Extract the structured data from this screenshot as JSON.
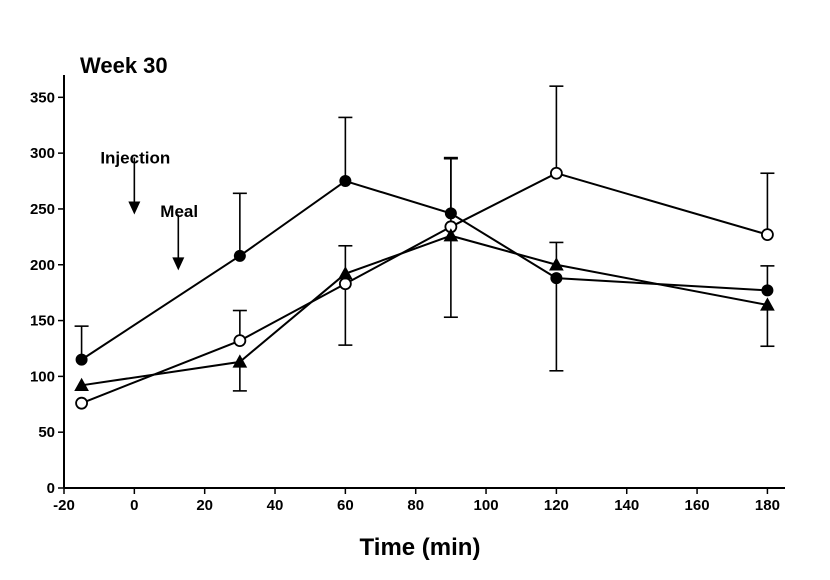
{
  "chart_data": {
    "type": "line",
    "title": "Week 30",
    "xlabel": "Time (min)",
    "ylabel": "",
    "xlim": [
      -20,
      185
    ],
    "ylim": [
      0,
      370
    ],
    "xticks": [
      -20,
      0,
      20,
      40,
      60,
      80,
      100,
      120,
      140,
      160,
      180
    ],
    "yticks": [
      0,
      50,
      100,
      150,
      200,
      250,
      300,
      350
    ],
    "grid": false,
    "x": [
      -15,
      30,
      60,
      90,
      120,
      180
    ],
    "series": [
      {
        "marker": "filled-circle",
        "values": [
          115,
          208,
          275,
          246,
          188,
          177
        ],
        "error_up": [
          30,
          56,
          57,
          49,
          0,
          22
        ],
        "error_down": [
          0,
          0,
          0,
          0,
          83,
          0
        ]
      },
      {
        "marker": "open-circle",
        "values": [
          76,
          132,
          183,
          234,
          282,
          227
        ],
        "error_up": [
          0,
          27,
          0,
          62,
          78,
          55
        ],
        "error_down": [
          0,
          0,
          55,
          81,
          0,
          0
        ]
      },
      {
        "marker": "filled-triangle",
        "values": [
          92,
          113,
          192,
          226,
          200,
          164
        ],
        "error_up": [
          0,
          0,
          25,
          0,
          20,
          0
        ],
        "error_down": [
          0,
          26,
          0,
          0,
          0,
          37
        ]
      }
    ],
    "annotations": [
      {
        "text": "Injection",
        "x": 0,
        "arrow_from_y": 296,
        "arrow_to_y": 245
      },
      {
        "text": "Meal",
        "x": 12.5,
        "arrow_from_y": 245,
        "arrow_to_y": 195
      }
    ]
  }
}
